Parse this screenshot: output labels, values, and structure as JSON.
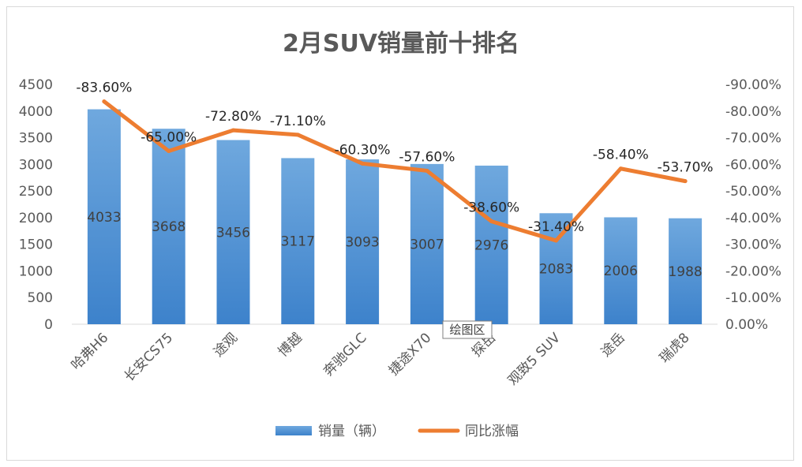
{
  "chart_data": {
    "type": "bar",
    "title": "2月SUV销量前十排名",
    "categories": [
      "哈弗H6",
      "长安CS75",
      "途观",
      "博越",
      "奔驰GLC",
      "捷途X70",
      "探岳",
      "观致5 SUV",
      "途岳",
      "瑞虎8"
    ],
    "series": [
      {
        "name": "销量（辆）",
        "type": "bar",
        "axis": "left",
        "values": [
          4033,
          3668,
          3456,
          3117,
          3093,
          3007,
          2976,
          2083,
          2006,
          1988
        ],
        "labels": [
          "4033",
          "3668",
          "3456",
          "3117",
          "3093",
          "3007",
          "2976",
          "2083",
          "2006",
          "1988"
        ],
        "color": "#5B9BD5"
      },
      {
        "name": "同比涨幅",
        "type": "line",
        "axis": "right",
        "values": [
          -83.6,
          -65.0,
          -72.8,
          -71.1,
          -60.3,
          -57.6,
          -38.6,
          -31.4,
          -58.4,
          -53.7
        ],
        "labels": [
          "-83.60%",
          "-65.00%",
          "-72.80%",
          "-71.10%",
          "-60.30%",
          "-57.60%",
          "-38.60%",
          "-31.40%",
          "-58.40%",
          "-53.70%"
        ],
        "color": "#ED7D31"
      }
    ],
    "y_left": {
      "range": [
        0,
        4500
      ],
      "ticks": [
        "0",
        "500",
        "1000",
        "1500",
        "2000",
        "2500",
        "3000",
        "3500",
        "4000",
        "4500"
      ]
    },
    "y_right": {
      "range": [
        0,
        -90
      ],
      "reversed": true,
      "ticks": [
        "0.00%",
        "-10.00%",
        "-20.00%",
        "-30.00%",
        "-40.00%",
        "-50.00%",
        "-60.00%",
        "-70.00%",
        "-80.00%",
        "-90.00%"
      ]
    },
    "grid": false,
    "legend": "bottom",
    "plot_area_tag": "绘图区"
  }
}
